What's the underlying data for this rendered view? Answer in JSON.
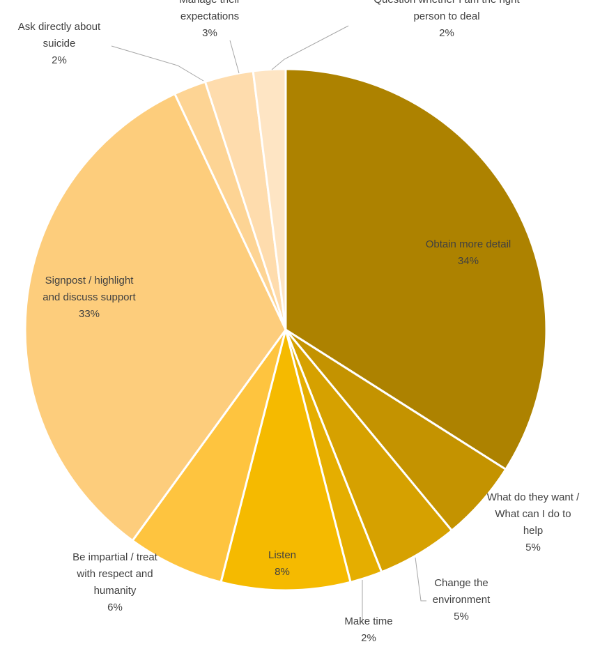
{
  "chart_data": {
    "type": "pie",
    "title": "",
    "slices": [
      {
        "label_lines": [
          "Obtain more detail"
        ],
        "value": 34,
        "value_text": "34%",
        "color": "#ad8200"
      },
      {
        "label_lines": [
          "What do they want /",
          "What can I do to",
          "help"
        ],
        "value": 5,
        "value_text": "5%",
        "color": "#c49300"
      },
      {
        "label_lines": [
          "Change the",
          "environment"
        ],
        "value": 5,
        "value_text": "5%",
        "color": "#d6a100"
      },
      {
        "label_lines": [
          "Make time"
        ],
        "value": 2,
        "value_text": "2%",
        "color": "#e5ae00"
      },
      {
        "label_lines": [
          "Listen"
        ],
        "value": 8,
        "value_text": "8%",
        "color": "#f5ba00"
      },
      {
        "label_lines": [
          "Be impartial / treat",
          "with respect and",
          "humanity"
        ],
        "value": 6,
        "value_text": "6%",
        "color": "#fec43f"
      },
      {
        "label_lines": [
          "Signpost / highlight",
          "and discuss support"
        ],
        "value": 33,
        "value_text": "33%",
        "color": "#fdcd7c"
      },
      {
        "label_lines": [
          "Ask directly about",
          "suicide"
        ],
        "value": 2,
        "value_text": "2%",
        "color": "#fdd494"
      },
      {
        "label_lines": [
          "Manage their",
          "expectations"
        ],
        "value": 3,
        "value_text": "3%",
        "color": "#fedcad"
      },
      {
        "label_lines": [
          "Question whether I am the right",
          "person to deal"
        ],
        "value": 2,
        "value_text": "2%",
        "color": "#fee5c4"
      }
    ]
  }
}
